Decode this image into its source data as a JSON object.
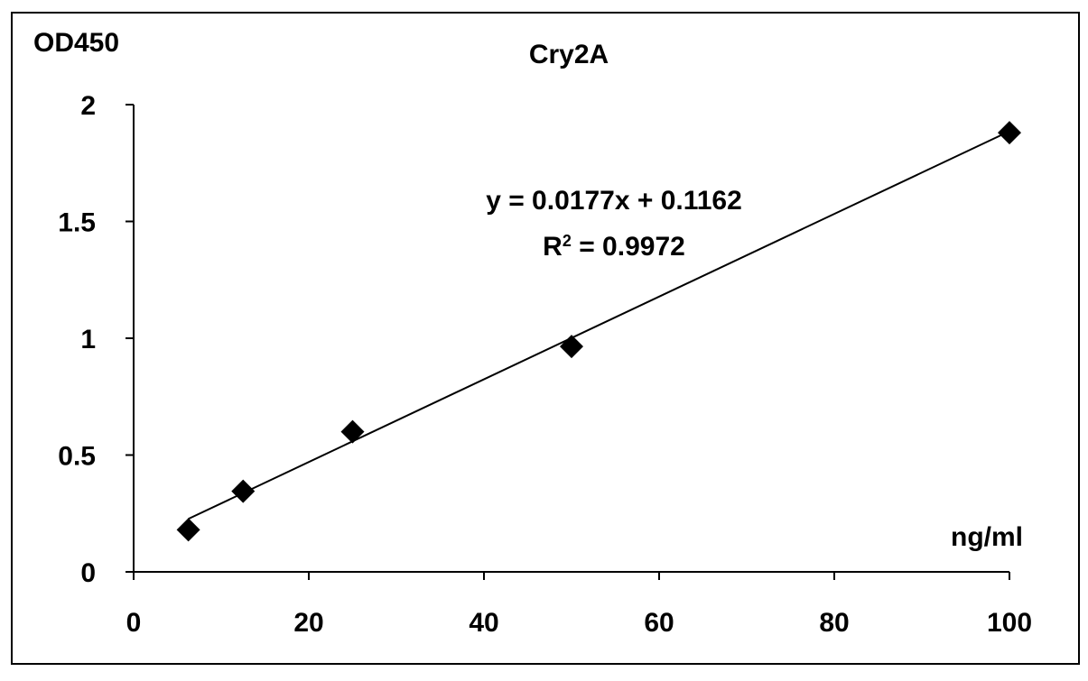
{
  "chart_data": {
    "type": "scatter",
    "title": "Cry2A",
    "ylabel": "OD450",
    "xlabel": "ng/ml",
    "xlim": [
      0,
      100
    ],
    "ylim": [
      0,
      2
    ],
    "x_ticks": [
      0,
      20,
      40,
      60,
      80,
      100
    ],
    "y_ticks": [
      0,
      0.5,
      1,
      1.5,
      2
    ],
    "grid": false,
    "legend": "none",
    "marker": "diamond",
    "marker_color": "#000000",
    "series": [
      {
        "x": [
          6.25,
          12.5,
          25,
          50,
          100
        ],
        "y": [
          0.18,
          0.345,
          0.6,
          0.965,
          1.88
        ]
      }
    ],
    "trendline": {
      "type": "linear",
      "slope": 0.0177,
      "intercept": 0.1162,
      "x_range": [
        6.25,
        100
      ],
      "equation_label": "y = 0.0177x + 0.1162",
      "r2_prefix": "R",
      "r2_sup": "2",
      "r2_value": " = 0.9972"
    }
  }
}
